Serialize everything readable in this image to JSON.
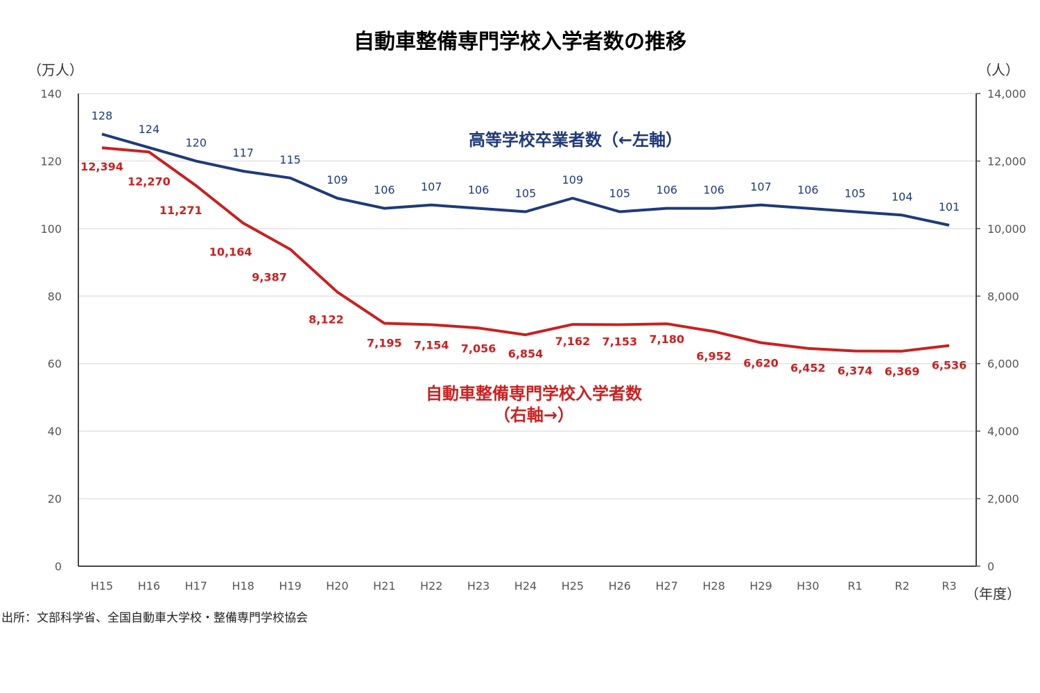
{
  "chart_data": {
    "type": "line",
    "title": "自動車整備専門学校入学者数の推移",
    "left_unit": "（万人）",
    "right_unit": "（人）",
    "xlabel": "（年度）",
    "categories": [
      "H15",
      "H16",
      "H17",
      "H18",
      "H19",
      "H20",
      "H21",
      "H22",
      "H23",
      "H24",
      "H25",
      "H26",
      "H27",
      "H28",
      "H29",
      "H30",
      "R1",
      "R2",
      "R3"
    ],
    "left_axis": {
      "min": 0,
      "max": 140,
      "ticks": [
        "0",
        "20",
        "40",
        "60",
        "80",
        "100",
        "120",
        "140"
      ]
    },
    "right_axis": {
      "min": 0,
      "max": 14000,
      "ticks": [
        "0",
        "2,000",
        "4,000",
        "6,000",
        "8,000",
        "10,000",
        "12,000",
        "14,000"
      ]
    },
    "grid": true,
    "series": [
      {
        "name": "高等学校卒業者数（←左軸）",
        "axis": "left",
        "color": "#1f3a7a",
        "values": [
          128,
          124,
          120,
          117,
          115,
          109,
          106,
          107,
          106,
          105,
          109,
          105,
          106,
          106,
          107,
          106,
          105,
          104,
          101
        ],
        "labels": [
          "128",
          "124",
          "120",
          "117",
          "115",
          "109",
          "106",
          "107",
          "106",
          "105",
          "109",
          "105",
          "106",
          "106",
          "107",
          "106",
          "105",
          "104",
          "101"
        ]
      },
      {
        "name": "自動車整備専門学校入学者数",
        "name_line2": "（右軸→）",
        "axis": "right",
        "color": "#cc1f1f",
        "values": [
          12394,
          12270,
          11271,
          10164,
          9387,
          8122,
          7195,
          7154,
          7056,
          6854,
          7162,
          7153,
          7180,
          6952,
          6620,
          6452,
          6374,
          6369,
          6536
        ],
        "labels": [
          "12,394",
          "12,270",
          "11,271",
          "10,164",
          "9,387",
          "8,122",
          "7,195",
          "7,154",
          "7,056",
          "6,854",
          "7,162",
          "7,153",
          "7,180",
          "6,952",
          "6,620",
          "6,452",
          "6,374",
          "6,369",
          "6,536"
        ]
      }
    ],
    "source": "出所：文部科学省、全国自動車大学校・整備専門学校協会"
  }
}
